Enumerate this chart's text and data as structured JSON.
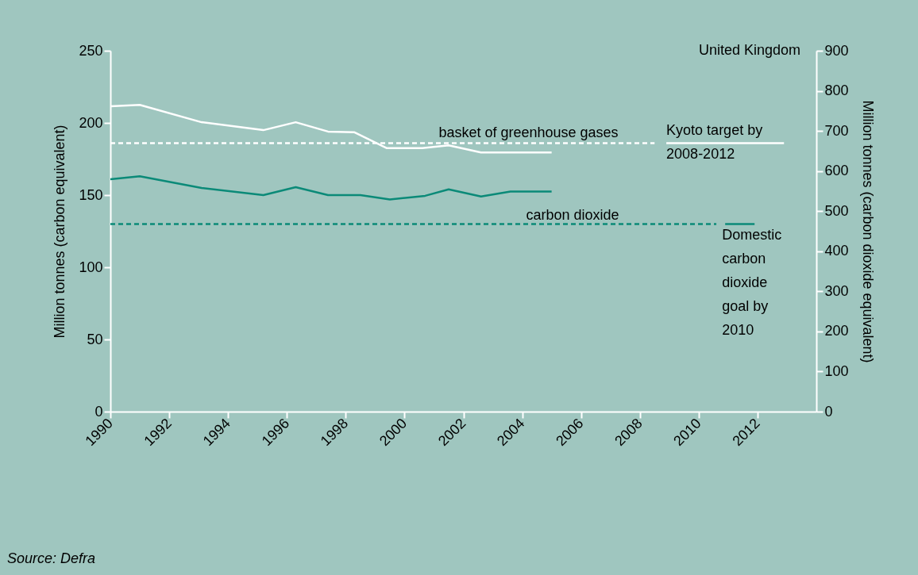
{
  "chart_data": {
    "type": "line",
    "ylabel": "Million tonnes (carbon equivalent)",
    "y2label": "Million tonnes (carbon dioxide equivalent)",
    "xlim": [
      1990,
      2014
    ],
    "xticks": [
      1990,
      1992,
      1994,
      1996,
      1998,
      2000,
      2002,
      2004,
      2006,
      2008,
      2010,
      2012
    ],
    "ylim": [
      0,
      250
    ],
    "yticks": [
      0,
      50,
      100,
      150,
      200,
      250
    ],
    "y2lim": [
      0,
      900
    ],
    "y2ticks": [
      0,
      100,
      200,
      300,
      400,
      500,
      600,
      700,
      800,
      900
    ],
    "grid": false,
    "series": [
      {
        "name": "basket of greenhouse gases",
        "color": "#ffffff",
        "line_style": "solid",
        "x": [
          1990,
          1991,
          1993.1,
          1995.2,
          1996.3,
          1997.4,
          1998.3,
          1999.4,
          2000.6,
          2001.5,
          2002.6,
          2005
        ],
        "values": [
          211.5,
          212.5,
          200.5,
          195,
          200.5,
          194,
          193.5,
          182.5,
          182.5,
          184.5,
          179.5,
          179.5
        ]
      },
      {
        "name": "carbon dioxide",
        "color": "#0b8a78",
        "line_style": "solid",
        "x": [
          1990,
          1991,
          1993.1,
          1995.2,
          1996.3,
          1997.4,
          1998.5,
          1999.5,
          2000.7,
          2001.5,
          2002.6,
          2003.6,
          2005
        ],
        "values": [
          161,
          163,
          155,
          150,
          155.5,
          150,
          150,
          147,
          149.5,
          154,
          149,
          152.5,
          152.5
        ]
      },
      {
        "color": "#ffffff",
        "line_style": "dashed",
        "x": [
          1990,
          2008.5
        ],
        "values": [
          186,
          186
        ]
      },
      {
        "name": "Kyoto target by 2008-2012",
        "color": "#ffffff",
        "line_style": "solid",
        "x": [
          2008.9,
          2012.9
        ],
        "values": [
          186,
          186
        ]
      },
      {
        "color": "#0b8a78",
        "line_style": "dashed",
        "x": [
          1990,
          2010.6
        ],
        "values": [
          130,
          130
        ]
      },
      {
        "name": "Domestic carbon dioxide goal by 2010",
        "color": "#0b8a78",
        "line_style": "solid",
        "x": [
          2010.9,
          2011.9
        ],
        "values": [
          130,
          130
        ]
      }
    ],
    "annotations": [
      "United Kingdom",
      "Source: Defra"
    ]
  }
}
